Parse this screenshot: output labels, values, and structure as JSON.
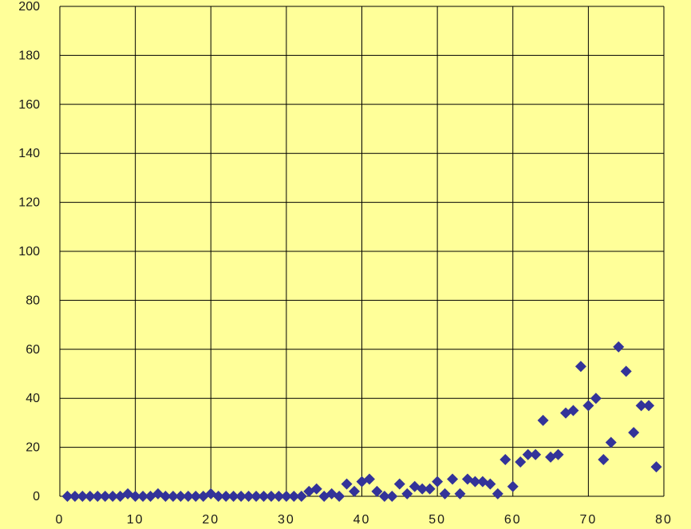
{
  "chart_data": {
    "type": "scatter",
    "title": "",
    "xlabel": "",
    "ylabel": "",
    "xlim": [
      0,
      80
    ],
    "ylim": [
      0,
      200
    ],
    "x_ticks": [
      0,
      10,
      20,
      30,
      40,
      50,
      60,
      70,
      80
    ],
    "y_ticks": [
      0,
      20,
      40,
      60,
      80,
      100,
      120,
      140,
      160,
      180,
      200
    ],
    "grid": true,
    "legend": "none",
    "colors": {
      "background": "#ffff99",
      "plot_background": "#ffff99",
      "marker": "#333399",
      "grid": "#000000"
    },
    "series": [
      {
        "marker": "diamond",
        "x": [
          1,
          2,
          3,
          4,
          5,
          6,
          7,
          8,
          9,
          10,
          11,
          12,
          13,
          14,
          15,
          16,
          17,
          18,
          19,
          20,
          21,
          22,
          23,
          24,
          25,
          26,
          27,
          28,
          29,
          30,
          31,
          32,
          33,
          34,
          35,
          36,
          37,
          38,
          39,
          40,
          41,
          42,
          43,
          44,
          45,
          46,
          47,
          48,
          49,
          50,
          51,
          52,
          53,
          54,
          55,
          56,
          57,
          58,
          59,
          60,
          61,
          62,
          63,
          64,
          65,
          66,
          67,
          68,
          69,
          70,
          71,
          72,
          73,
          74,
          75,
          76,
          77,
          78,
          79
        ],
        "y": [
          0,
          0,
          0,
          0,
          0,
          0,
          0,
          0,
          1,
          0,
          0,
          0,
          1,
          0,
          0,
          0,
          0,
          0,
          0,
          1,
          0,
          0,
          0,
          0,
          0,
          0,
          0,
          0,
          0,
          0,
          0,
          0,
          2,
          3,
          0,
          1,
          0,
          5,
          2,
          6,
          7,
          2,
          0,
          0,
          5,
          1,
          4,
          3,
          3,
          6,
          1,
          7,
          1,
          7,
          6,
          6,
          5,
          1,
          15,
          4,
          14,
          17,
          17,
          31,
          16,
          17,
          34,
          35,
          53,
          37,
          40,
          15,
          22,
          61,
          51,
          26,
          37,
          37,
          12
        ]
      }
    ]
  }
}
